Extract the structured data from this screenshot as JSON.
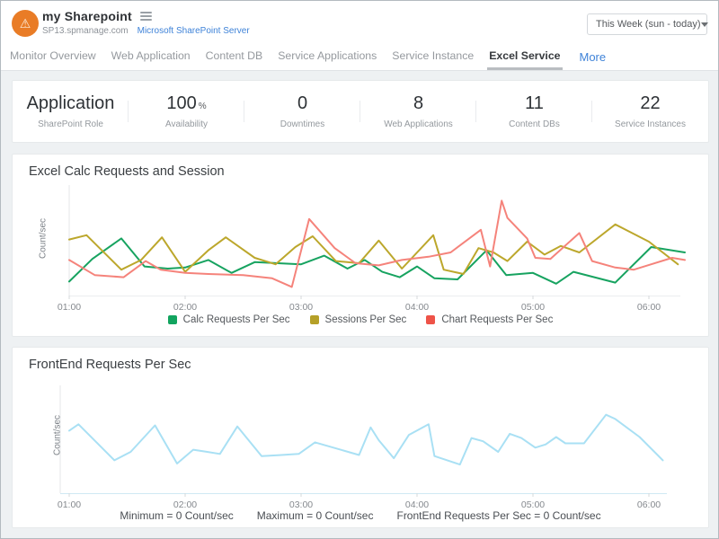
{
  "header": {
    "title": "my Sharepoint",
    "domain": "SP13.spmanage.com",
    "server_link": "Microsoft SharePoint Server",
    "time_range": "This Week (sun - today)"
  },
  "nav": {
    "items": [
      "Monitor Overview",
      "Web Application",
      "Content DB",
      "Service Applications",
      "Service Instance",
      "Excel Service"
    ],
    "active_index": 5,
    "more_label": "More"
  },
  "stats": [
    {
      "value": "Application",
      "suffix": "",
      "label": "SharePoint Role"
    },
    {
      "value": "100",
      "suffix": "%",
      "label": "Availability"
    },
    {
      "value": "0",
      "suffix": "",
      "label": "Downtimes"
    },
    {
      "value": "8",
      "suffix": "",
      "label": "Web Applications"
    },
    {
      "value": "11",
      "suffix": "",
      "label": "Content DBs"
    },
    {
      "value": "22",
      "suffix": "",
      "label": "Service Instances"
    }
  ],
  "chart_data": [
    {
      "type": "line",
      "title": "Excel Calc Requests and Session",
      "xlabel": "",
      "ylabel": "Count/sec",
      "x_ticks": [
        "01:00",
        "02:00",
        "03:00",
        "04:00",
        "05:00",
        "06:00"
      ],
      "x_tick_hours": [
        1,
        2,
        3,
        4,
        5,
        6
      ],
      "ylim": [
        0,
        100
      ],
      "y_axis_labels_shown": false,
      "grid": false,
      "legend_position": "bottom",
      "note": "y values are relative estimates (unlabeled axis), x in hours",
      "series": [
        {
          "name": "Calc Requests Per Sec",
          "color": "#17a360",
          "legend_swatch": "#12a45f",
          "points": [
            [
              1.0,
              13
            ],
            [
              1.2,
              34
            ],
            [
              1.45,
              53
            ],
            [
              1.65,
              27
            ],
            [
              1.85,
              25
            ],
            [
              2.0,
              26
            ],
            [
              2.2,
              33
            ],
            [
              2.4,
              21
            ],
            [
              2.6,
              31
            ],
            [
              2.8,
              30
            ],
            [
              3.0,
              29
            ],
            [
              3.2,
              37
            ],
            [
              3.4,
              25
            ],
            [
              3.55,
              33
            ],
            [
              3.7,
              22
            ],
            [
              3.85,
              17
            ],
            [
              4.0,
              27
            ],
            [
              4.15,
              16
            ],
            [
              4.35,
              15
            ],
            [
              4.6,
              42
            ],
            [
              4.77,
              19
            ],
            [
              5.0,
              21
            ],
            [
              5.2,
              11
            ],
            [
              5.35,
              22
            ],
            [
              5.71,
              12
            ],
            [
              6.02,
              45
            ],
            [
              6.31,
              40
            ]
          ]
        },
        {
          "name": "Sessions Per Sec",
          "color": "#bca72c",
          "legend_swatch": "#b5a028",
          "points": [
            [
              1.0,
              52
            ],
            [
              1.15,
              56
            ],
            [
              1.45,
              24
            ],
            [
              1.62,
              33
            ],
            [
              1.8,
              54
            ],
            [
              2.0,
              22
            ],
            [
              2.2,
              42
            ],
            [
              2.35,
              54
            ],
            [
              2.6,
              35
            ],
            [
              2.78,
              29
            ],
            [
              2.95,
              45
            ],
            [
              3.1,
              55
            ],
            [
              3.3,
              32
            ],
            [
              3.5,
              30
            ],
            [
              3.67,
              51
            ],
            [
              3.87,
              25
            ],
            [
              4.14,
              56
            ],
            [
              4.23,
              24
            ],
            [
              4.4,
              20
            ],
            [
              4.53,
              44
            ],
            [
              4.66,
              40
            ],
            [
              4.78,
              32
            ],
            [
              4.95,
              50
            ],
            [
              5.1,
              38
            ],
            [
              5.24,
              46
            ],
            [
              5.4,
              40
            ],
            [
              5.71,
              66
            ],
            [
              6.0,
              50
            ],
            [
              6.25,
              29
            ]
          ]
        },
        {
          "name": "Chart Requests Per Sec",
          "color": "#f5837b",
          "legend_swatch": "#ee5348",
          "points": [
            [
              1.0,
              33
            ],
            [
              1.22,
              19
            ],
            [
              1.47,
              17
            ],
            [
              1.66,
              32
            ],
            [
              1.79,
              24
            ],
            [
              2.0,
              21
            ],
            [
              2.2,
              20
            ],
            [
              2.5,
              19
            ],
            [
              2.75,
              16
            ],
            [
              2.92,
              8
            ],
            [
              3.07,
              71
            ],
            [
              3.29,
              44
            ],
            [
              3.47,
              30
            ],
            [
              3.67,
              28
            ],
            [
              3.87,
              33
            ],
            [
              4.1,
              36
            ],
            [
              4.29,
              40
            ],
            [
              4.55,
              61
            ],
            [
              4.63,
              27
            ],
            [
              4.73,
              88
            ],
            [
              4.78,
              72
            ],
            [
              4.95,
              53
            ],
            [
              5.02,
              35
            ],
            [
              5.15,
              34
            ],
            [
              5.4,
              58
            ],
            [
              5.51,
              32
            ],
            [
              5.71,
              26
            ],
            [
              5.87,
              24
            ],
            [
              6.02,
              29
            ],
            [
              6.2,
              35
            ],
            [
              6.31,
              33
            ]
          ]
        }
      ]
    },
    {
      "type": "line",
      "title": "FrontEnd Requests Per Sec",
      "xlabel": "",
      "ylabel": "Count/sec",
      "x_ticks": [
        "01:00",
        "02:00",
        "03:00",
        "04:00",
        "05:00",
        "06:00"
      ],
      "x_tick_hours": [
        1,
        2,
        3,
        4,
        5,
        6
      ],
      "ylim": [
        0,
        100
      ],
      "y_axis_labels_shown": false,
      "grid": false,
      "legend_position": "none",
      "note": "y values are relative estimates (unlabeled axis), x in hours",
      "series": [
        {
          "name": "FrontEnd Requests Per Sec",
          "color": "#a9e0f4",
          "legend_swatch": "#a9e0f4",
          "points": [
            [
              1.0,
              59
            ],
            [
              1.08,
              65
            ],
            [
              1.39,
              31
            ],
            [
              1.53,
              39
            ],
            [
              1.74,
              64
            ],
            [
              1.93,
              28
            ],
            [
              2.07,
              41
            ],
            [
              2.19,
              39
            ],
            [
              2.3,
              37
            ],
            [
              2.45,
              63
            ],
            [
              2.66,
              35
            ],
            [
              2.83,
              36
            ],
            [
              2.98,
              37
            ],
            [
              3.12,
              48
            ],
            [
              3.34,
              41
            ],
            [
              3.5,
              36
            ],
            [
              3.6,
              62
            ],
            [
              3.67,
              50
            ],
            [
              3.8,
              33
            ],
            [
              3.93,
              55
            ],
            [
              4.1,
              65
            ],
            [
              4.15,
              35
            ],
            [
              4.37,
              27
            ],
            [
              4.47,
              52
            ],
            [
              4.57,
              49
            ],
            [
              4.7,
              39
            ],
            [
              4.8,
              56
            ],
            [
              4.9,
              52
            ],
            [
              5.02,
              43
            ],
            [
              5.11,
              46
            ],
            [
              5.2,
              53
            ],
            [
              5.28,
              47
            ],
            [
              5.44,
              47
            ],
            [
              5.63,
              74
            ],
            [
              5.71,
              70
            ],
            [
              5.92,
              53
            ],
            [
              6.12,
              31
            ]
          ]
        }
      ],
      "summary": [
        "Minimum = 0 Count/sec",
        "Maximum = 0 Count/sec",
        "FrontEnd Requests Per Sec = 0 Count/sec"
      ]
    }
  ],
  "icons": {
    "logo": "warning-triangle",
    "menu": "hamburger-icon",
    "select_caret": "chevron-down-icon"
  },
  "colors": {
    "accent_orange": "#e97c26",
    "link_blue": "#3f83d8",
    "page_bg": "#eef1f3",
    "axis_line": "#e4e7ea",
    "baseline_chart2": "#cfe9f3",
    "tick_text": "#85898e"
  }
}
